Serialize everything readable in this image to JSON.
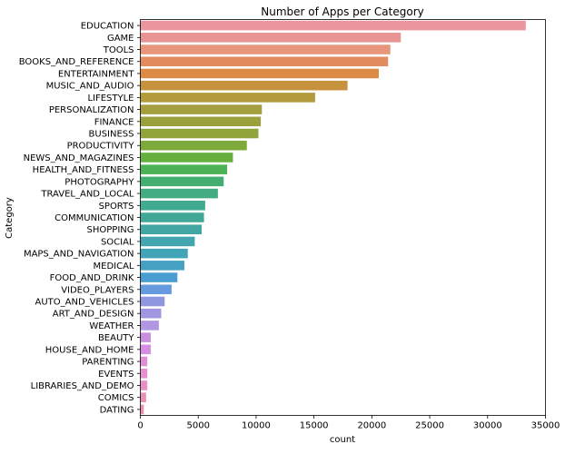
{
  "chart_data": {
    "type": "bar",
    "orientation": "horizontal",
    "title": "Number of Apps per Category",
    "xlabel": "count",
    "ylabel": "Category",
    "xlim": [
      0,
      35000
    ],
    "xticks": [
      0,
      5000,
      10000,
      15000,
      20000,
      25000,
      30000,
      35000
    ],
    "grid": false,
    "categories": [
      "EDUCATION",
      "GAME",
      "TOOLS",
      "BOOKS_AND_REFERENCE",
      "ENTERTAINMENT",
      "MUSIC_AND_AUDIO",
      "LIFESTYLE",
      "PERSONALIZATION",
      "FINANCE",
      "BUSINESS",
      "PRODUCTIVITY",
      "NEWS_AND_MAGAZINES",
      "HEALTH_AND_FITNESS",
      "PHOTOGRAPHY",
      "TRAVEL_AND_LOCAL",
      "SPORTS",
      "COMMUNICATION",
      "SHOPPING",
      "SOCIAL",
      "MAPS_AND_NAVIGATION",
      "MEDICAL",
      "FOOD_AND_DRINK",
      "VIDEO_PLAYERS",
      "AUTO_AND_VEHICLES",
      "ART_AND_DESIGN",
      "WEATHER",
      "BEAUTY",
      "HOUSE_AND_HOME",
      "PARENTING",
      "EVENTS",
      "LIBRARIES_AND_DEMO",
      "COMICS",
      "DATING"
    ],
    "values": [
      33300,
      22500,
      21600,
      21400,
      20600,
      17900,
      15100,
      10500,
      10400,
      10200,
      9200,
      8000,
      7500,
      7200,
      6700,
      5600,
      5500,
      5300,
      4700,
      4100,
      3800,
      3200,
      2700,
      2100,
      1800,
      1600,
      900,
      900,
      600,
      600,
      600,
      500,
      300
    ],
    "colors": [
      "#ea969c",
      "#e89494",
      "#e7957b",
      "#e18b5f",
      "#dd8c46",
      "#c6923d",
      "#b19b3d",
      "#a59e3d",
      "#9aa13c",
      "#90a43b",
      "#7ea93b",
      "#64af3d",
      "#4bb255",
      "#44ae71",
      "#43ac82",
      "#42aa8f",
      "#41a898",
      "#42a7a2",
      "#43a5ad",
      "#43a3b7",
      "#45a0c2",
      "#4a9dd0",
      "#659adf",
      "#8f98df",
      "#a196e2",
      "#b197e1",
      "#c88fdf",
      "#d58fe0",
      "#e08fd7",
      "#e88fd0",
      "#e890c4",
      "#e891b6",
      "#e891a9"
    ]
  }
}
